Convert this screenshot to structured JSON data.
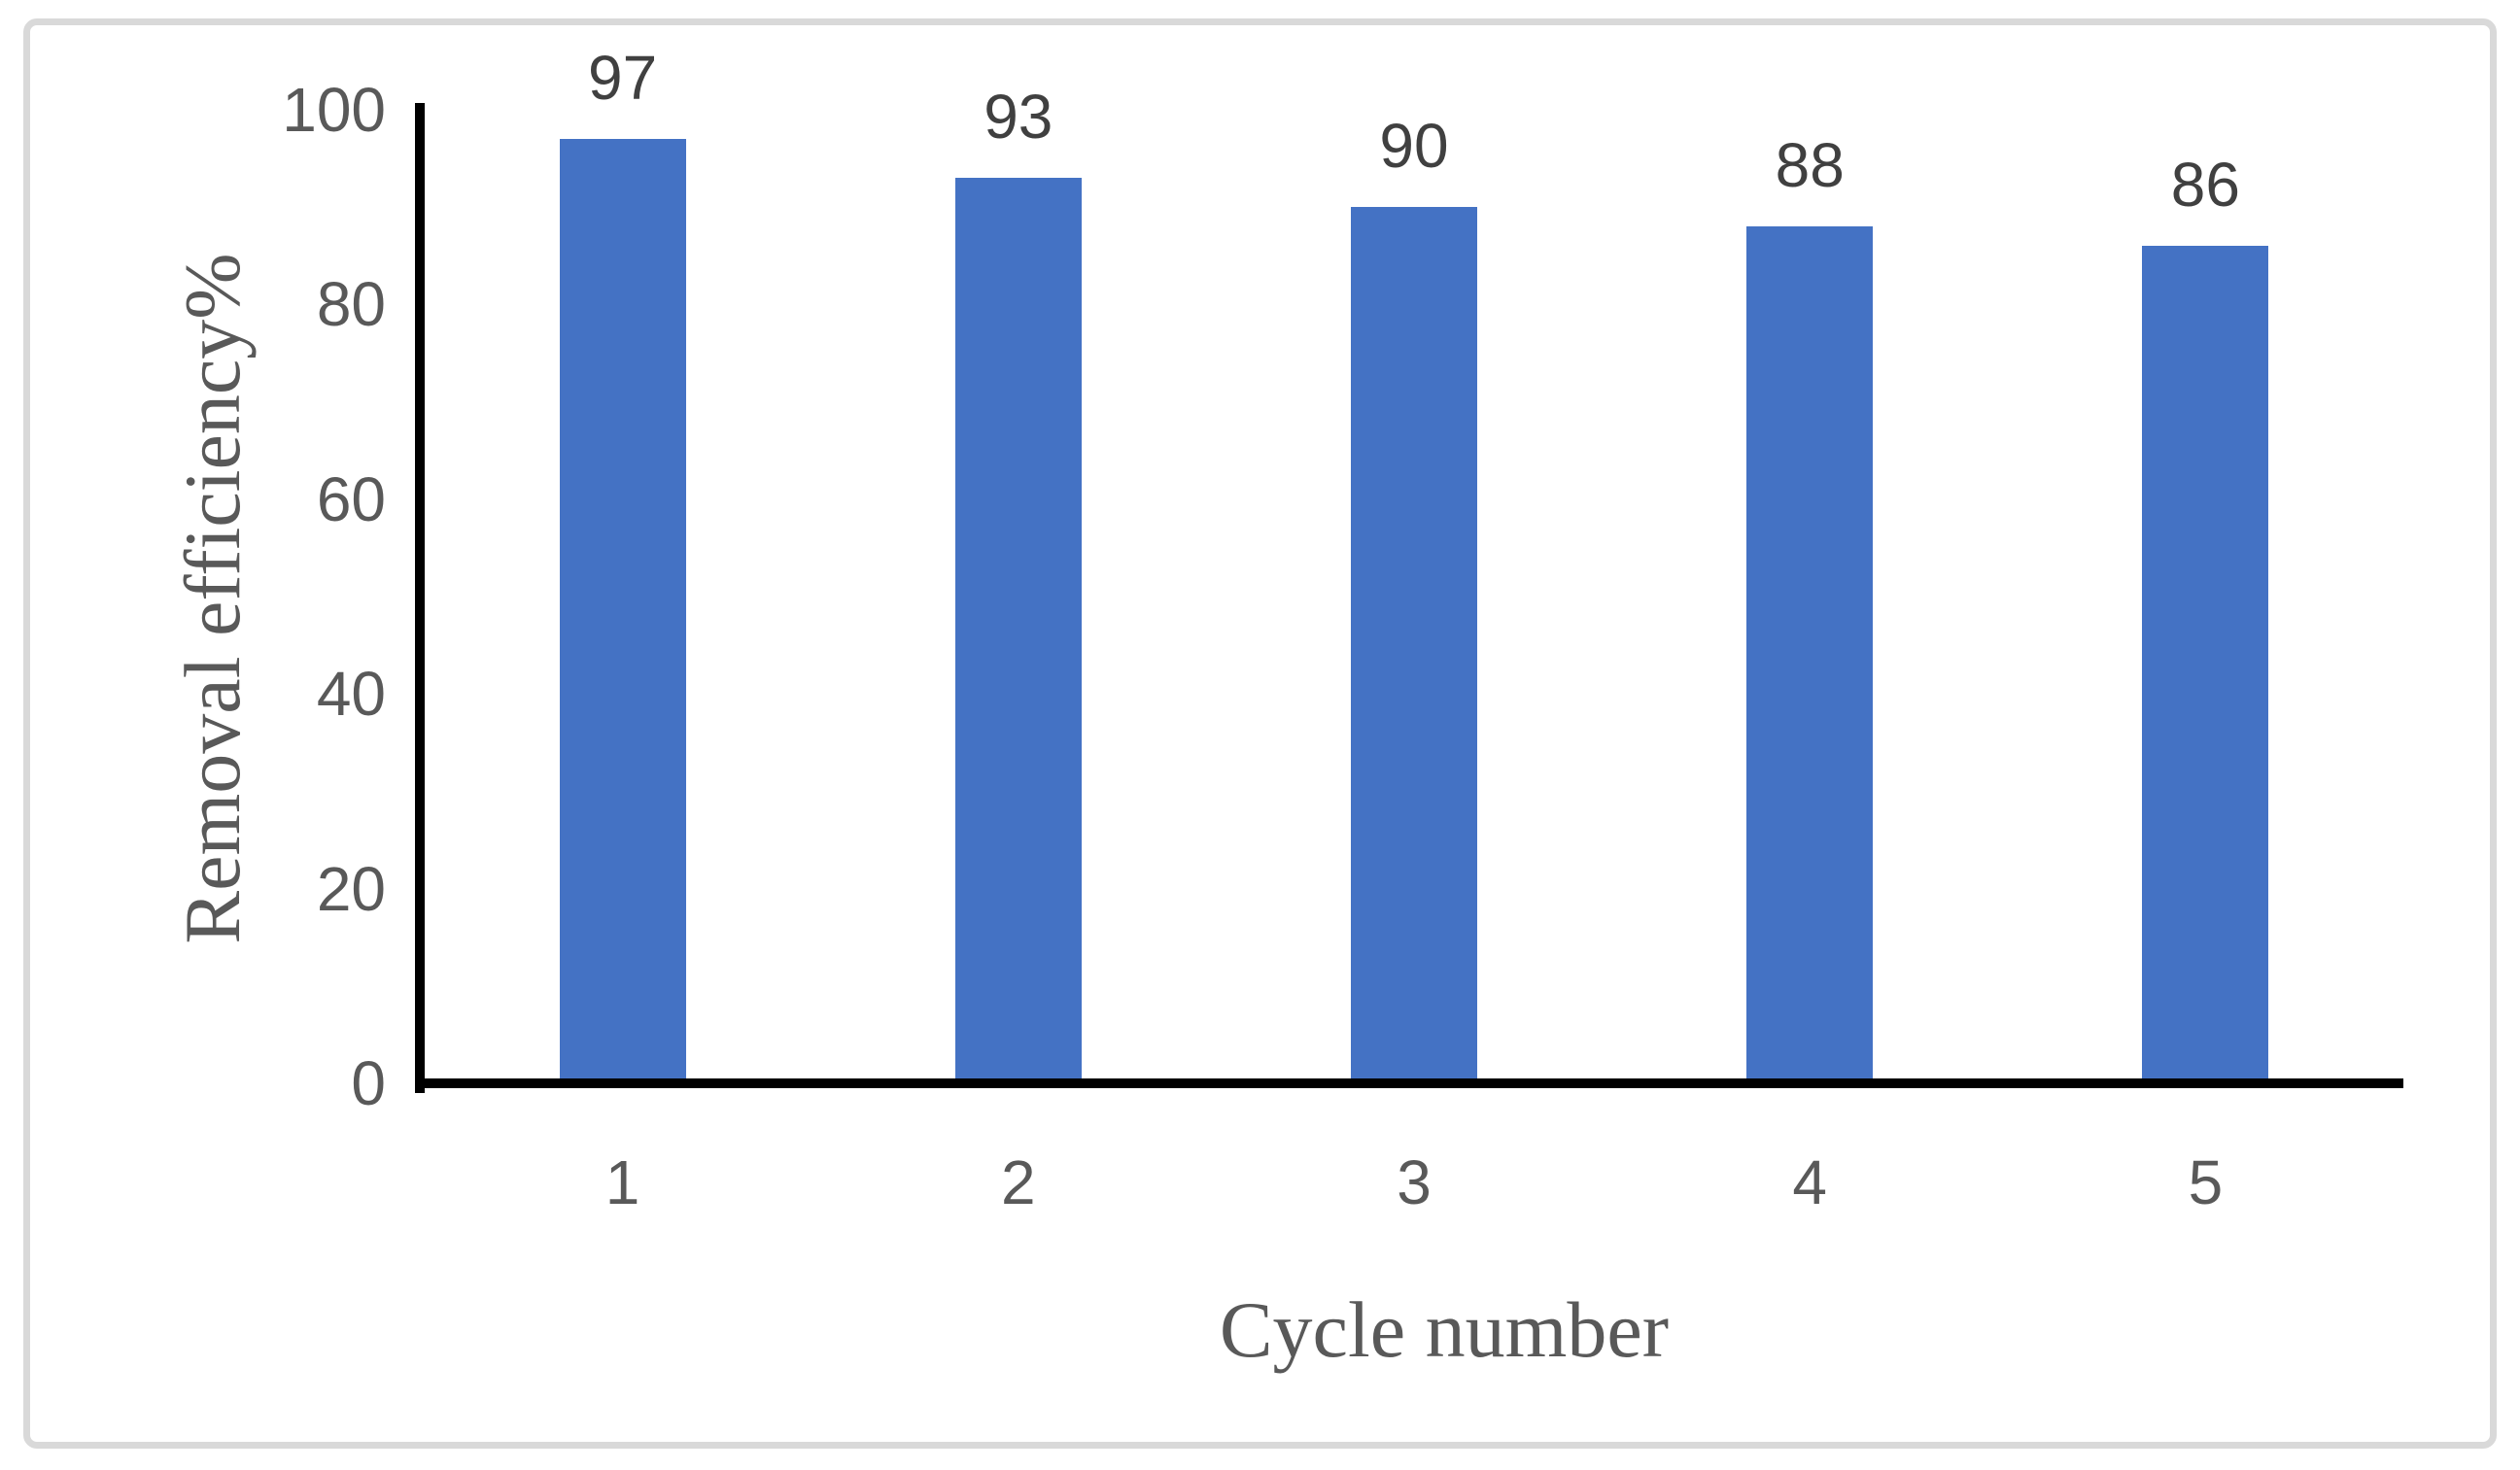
{
  "chart_data": {
    "type": "bar",
    "title": "",
    "categories": [
      "1",
      "2",
      "3",
      "4",
      "5"
    ],
    "values": [
      97,
      93,
      90,
      88,
      86
    ],
    "data_labels": [
      "97",
      "93",
      "90",
      "88",
      "86"
    ],
    "xlabel": "Cycle number",
    "ylabel": "Removal efficiency%",
    "ylim": [
      0,
      100
    ],
    "yticks": [
      0,
      20,
      40,
      60,
      80,
      100
    ],
    "ytick_labels": [
      "0",
      "20",
      "40",
      "60",
      "80",
      "100"
    ],
    "grid": "off",
    "legend": "none",
    "colors": {
      "bar_fill": "#4472C4",
      "axis_line": "#000000",
      "tick_label": "#595959",
      "data_label": "#404040",
      "axis_title": "#595959",
      "frame_border": "#D9D9D9",
      "background": "#FFFFFF"
    }
  }
}
